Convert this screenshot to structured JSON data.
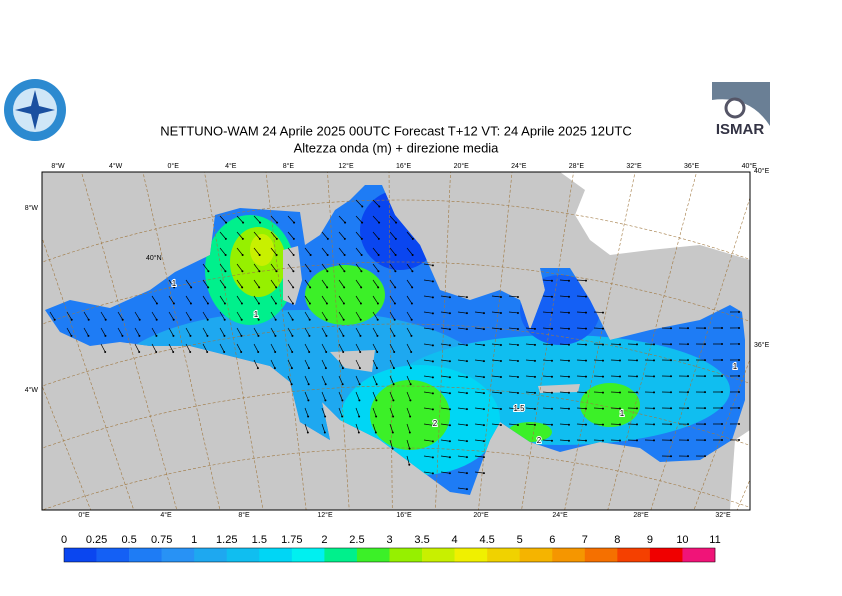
{
  "header": {
    "title": "NETTUNO-WAM  24   Aprile  2025 00UTC Forecast T+12 VT: 24   Aprile  2025 12UTC",
    "subtitle": "Altezza onda (m) + direzione media",
    "logo_right": "ISMAR"
  },
  "map": {
    "top_labels": [
      "8°W",
      "4°W",
      "0°E",
      "4°E",
      "8°E",
      "12°E",
      "16°E",
      "20°E",
      "24°E",
      "28°E",
      "32°E",
      "36°E",
      "40°E"
    ],
    "bottom_labels": [
      "0°E",
      "4°E",
      "8°E",
      "12°E",
      "16°E",
      "20°E",
      "24°E",
      "28°E",
      "32°E"
    ],
    "left_labels": [
      "8°W",
      "4°W"
    ],
    "right_labels": [
      "40°E",
      "36°E"
    ],
    "lat_label": "40°N",
    "contour_labels": [
      "1",
      "1",
      "1.5",
      "2",
      "2",
      "1",
      "1"
    ]
  },
  "colorbar": {
    "labels": [
      "0",
      "0.25",
      "0.5",
      "0.75",
      "1",
      "1.25",
      "1.5",
      "1.75",
      "2",
      "2.5",
      "3",
      "3.5",
      "4",
      "4.5",
      "5",
      "6",
      "7",
      "8",
      "9",
      "10",
      "11"
    ],
    "colors": [
      "#0a46f0",
      "#1460f5",
      "#1e7cf5",
      "#2892f5",
      "#1ea8f0",
      "#10bef0",
      "#00d6f5",
      "#00f0f0",
      "#00f08c",
      "#3cf028",
      "#96f000",
      "#c8f000",
      "#f0f000",
      "#f0d200",
      "#f5b400",
      "#f59600",
      "#f57000",
      "#f54000",
      "#f00000",
      "#f01478"
    ]
  }
}
